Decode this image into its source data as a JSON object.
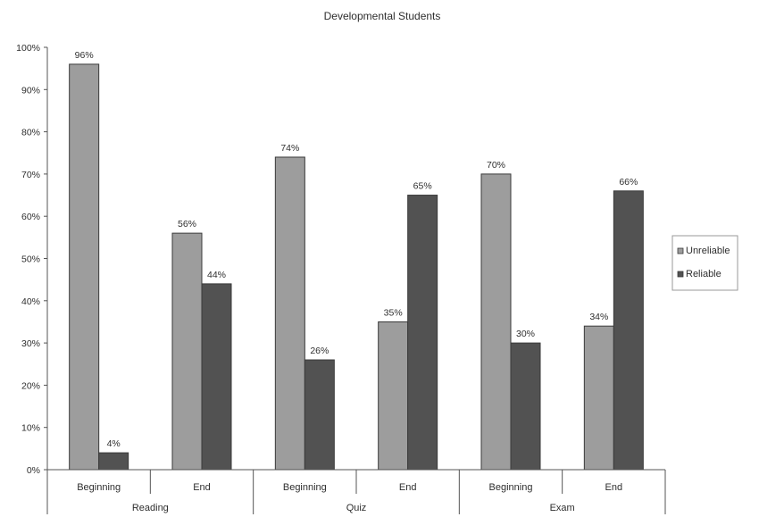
{
  "chart_data": {
    "type": "bar",
    "title": "Developmental Students",
    "xlabel": "",
    "ylabel": "",
    "ylim": [
      0,
      100
    ],
    "yticks": [
      "0%",
      "10%",
      "20%",
      "30%",
      "40%",
      "50%",
      "60%",
      "70%",
      "80%",
      "90%",
      "100%"
    ],
    "groups": [
      "Reading",
      "Quiz",
      "Exam"
    ],
    "categories": [
      "Beginning",
      "End",
      "Beginning",
      "End",
      "Beginning",
      "End"
    ],
    "series": [
      {
        "name": "Unreliable",
        "values": [
          96,
          56,
          74,
          35,
          70,
          34
        ],
        "labels": [
          "96%",
          "56%",
          "74%",
          "35%",
          "70%",
          "34%"
        ],
        "color": "#9d9d9d"
      },
      {
        "name": "Reliable",
        "values": [
          4,
          44,
          26,
          65,
          30,
          66
        ],
        "labels": [
          "4%",
          "44%",
          "26%",
          "65%",
          "30%",
          "66%"
        ],
        "color": "#525252"
      }
    ],
    "grid": false,
    "legend": "right"
  }
}
